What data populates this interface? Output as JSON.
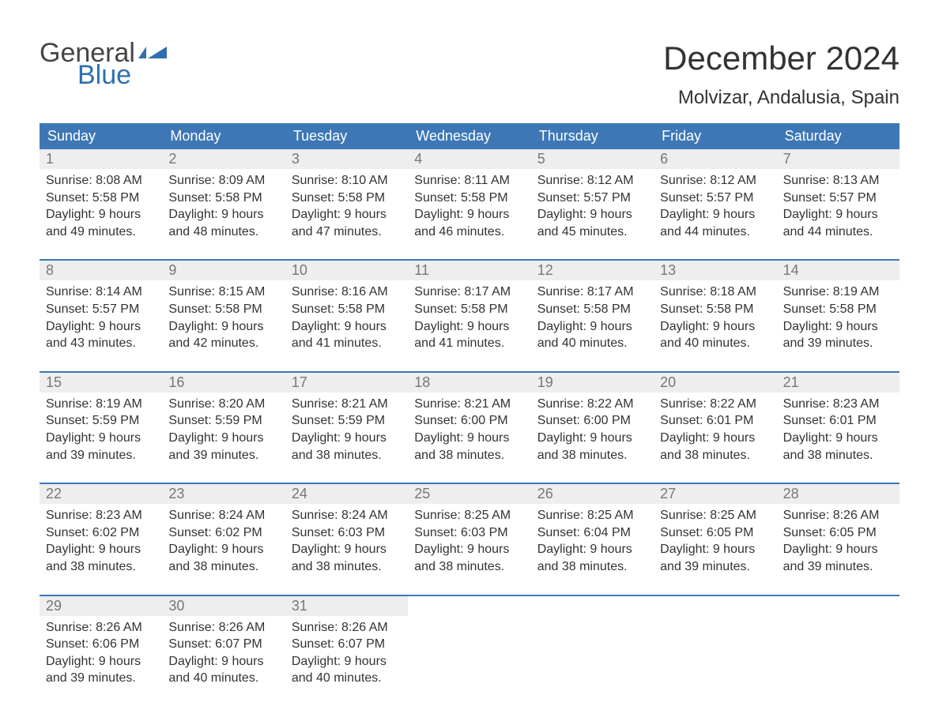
{
  "logo": {
    "text_general": "General",
    "text_blue": "Blue",
    "flag_color": "#2f6fb0"
  },
  "header": {
    "month_title": "December 2024",
    "location": "Molvizar, Andalusia, Spain"
  },
  "calendar": {
    "weekday_bg": "#3d77b6",
    "weekday_fg": "#ffffff",
    "daynum_bg": "#eeeeee",
    "daynum_fg": "#777777",
    "border_color": "#3d77b6",
    "text_color": "#333333",
    "background": "#ffffff",
    "font_family": "Arial",
    "body_fontsize": 16,
    "weekdays": [
      "Sunday",
      "Monday",
      "Tuesday",
      "Wednesday",
      "Thursday",
      "Friday",
      "Saturday"
    ],
    "days": [
      {
        "n": 1,
        "sunrise": "8:08 AM",
        "sunset": "5:58 PM",
        "daylight": "9 hours and 49 minutes."
      },
      {
        "n": 2,
        "sunrise": "8:09 AM",
        "sunset": "5:58 PM",
        "daylight": "9 hours and 48 minutes."
      },
      {
        "n": 3,
        "sunrise": "8:10 AM",
        "sunset": "5:58 PM",
        "daylight": "9 hours and 47 minutes."
      },
      {
        "n": 4,
        "sunrise": "8:11 AM",
        "sunset": "5:58 PM",
        "daylight": "9 hours and 46 minutes."
      },
      {
        "n": 5,
        "sunrise": "8:12 AM",
        "sunset": "5:57 PM",
        "daylight": "9 hours and 45 minutes."
      },
      {
        "n": 6,
        "sunrise": "8:12 AM",
        "sunset": "5:57 PM",
        "daylight": "9 hours and 44 minutes."
      },
      {
        "n": 7,
        "sunrise": "8:13 AM",
        "sunset": "5:57 PM",
        "daylight": "9 hours and 44 minutes."
      },
      {
        "n": 8,
        "sunrise": "8:14 AM",
        "sunset": "5:57 PM",
        "daylight": "9 hours and 43 minutes."
      },
      {
        "n": 9,
        "sunrise": "8:15 AM",
        "sunset": "5:58 PM",
        "daylight": "9 hours and 42 minutes."
      },
      {
        "n": 10,
        "sunrise": "8:16 AM",
        "sunset": "5:58 PM",
        "daylight": "9 hours and 41 minutes."
      },
      {
        "n": 11,
        "sunrise": "8:17 AM",
        "sunset": "5:58 PM",
        "daylight": "9 hours and 41 minutes."
      },
      {
        "n": 12,
        "sunrise": "8:17 AM",
        "sunset": "5:58 PM",
        "daylight": "9 hours and 40 minutes."
      },
      {
        "n": 13,
        "sunrise": "8:18 AM",
        "sunset": "5:58 PM",
        "daylight": "9 hours and 40 minutes."
      },
      {
        "n": 14,
        "sunrise": "8:19 AM",
        "sunset": "5:58 PM",
        "daylight": "9 hours and 39 minutes."
      },
      {
        "n": 15,
        "sunrise": "8:19 AM",
        "sunset": "5:59 PM",
        "daylight": "9 hours and 39 minutes."
      },
      {
        "n": 16,
        "sunrise": "8:20 AM",
        "sunset": "5:59 PM",
        "daylight": "9 hours and 39 minutes."
      },
      {
        "n": 17,
        "sunrise": "8:21 AM",
        "sunset": "5:59 PM",
        "daylight": "9 hours and 38 minutes."
      },
      {
        "n": 18,
        "sunrise": "8:21 AM",
        "sunset": "6:00 PM",
        "daylight": "9 hours and 38 minutes."
      },
      {
        "n": 19,
        "sunrise": "8:22 AM",
        "sunset": "6:00 PM",
        "daylight": "9 hours and 38 minutes."
      },
      {
        "n": 20,
        "sunrise": "8:22 AM",
        "sunset": "6:01 PM",
        "daylight": "9 hours and 38 minutes."
      },
      {
        "n": 21,
        "sunrise": "8:23 AM",
        "sunset": "6:01 PM",
        "daylight": "9 hours and 38 minutes."
      },
      {
        "n": 22,
        "sunrise": "8:23 AM",
        "sunset": "6:02 PM",
        "daylight": "9 hours and 38 minutes."
      },
      {
        "n": 23,
        "sunrise": "8:24 AM",
        "sunset": "6:02 PM",
        "daylight": "9 hours and 38 minutes."
      },
      {
        "n": 24,
        "sunrise": "8:24 AM",
        "sunset": "6:03 PM",
        "daylight": "9 hours and 38 minutes."
      },
      {
        "n": 25,
        "sunrise": "8:25 AM",
        "sunset": "6:03 PM",
        "daylight": "9 hours and 38 minutes."
      },
      {
        "n": 26,
        "sunrise": "8:25 AM",
        "sunset": "6:04 PM",
        "daylight": "9 hours and 38 minutes."
      },
      {
        "n": 27,
        "sunrise": "8:25 AM",
        "sunset": "6:05 PM",
        "daylight": "9 hours and 39 minutes."
      },
      {
        "n": 28,
        "sunrise": "8:26 AM",
        "sunset": "6:05 PM",
        "daylight": "9 hours and 39 minutes."
      },
      {
        "n": 29,
        "sunrise": "8:26 AM",
        "sunset": "6:06 PM",
        "daylight": "9 hours and 39 minutes."
      },
      {
        "n": 30,
        "sunrise": "8:26 AM",
        "sunset": "6:07 PM",
        "daylight": "9 hours and 40 minutes."
      },
      {
        "n": 31,
        "sunrise": "8:26 AM",
        "sunset": "6:07 PM",
        "daylight": "9 hours and 40 minutes."
      }
    ],
    "labels": {
      "sunrise": "Sunrise:",
      "sunset": "Sunset:",
      "daylight": "Daylight:"
    }
  }
}
